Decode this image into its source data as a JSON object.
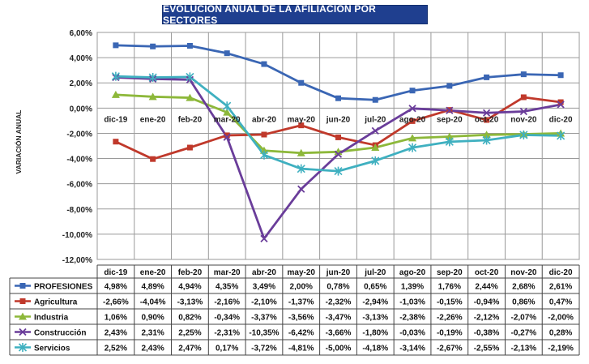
{
  "chart_data": {
    "type": "line",
    "title": "EVOLUCIÓN ANUAL DE LA AFILIACIÓN  POR SECTORES",
    "ylabel": "VARIACIÓN ANUAL",
    "xlabel": "",
    "ylim": [
      -12,
      6
    ],
    "yticks": [
      "6,00%",
      "4,00%",
      "2,00%",
      "0,00%",
      "-2,00%",
      "-4,00%",
      "-6,00%",
      "-8,00%",
      "-10,00%",
      "-12,00%"
    ],
    "grid": true,
    "legend": "data-table-below",
    "categories": [
      "dic-19",
      "ene-20",
      "feb-20",
      "mar-20",
      "abr-20",
      "may-20",
      "jun-20",
      "jul-20",
      "ago-20",
      "sep-20",
      "oct-20",
      "nov-20",
      "dic-20"
    ],
    "series": [
      {
        "name": "PROFESIONES",
        "color": "#3a66b4",
        "marker": "square",
        "values": [
          4.98,
          4.89,
          4.94,
          4.35,
          3.49,
          2.0,
          0.78,
          0.65,
          1.39,
          1.76,
          2.44,
          2.68,
          2.61
        ],
        "labels": [
          "4,98%",
          "4,89%",
          "4,94%",
          "4,35%",
          "3,49%",
          "2,00%",
          "0,78%",
          "0,65%",
          "1,39%",
          "1,76%",
          "2,44%",
          "2,68%",
          "2,61%"
        ]
      },
      {
        "name": "Agricultura",
        "color": "#c0392b",
        "marker": "square",
        "values": [
          -2.66,
          -4.04,
          -3.13,
          -2.16,
          -2.1,
          -1.37,
          -2.32,
          -2.94,
          -1.03,
          -0.15,
          -0.94,
          0.86,
          0.47
        ],
        "labels": [
          "-2,66%",
          "-4,04%",
          "-3,13%",
          "-2,16%",
          "-2,10%",
          "-1,37%",
          "-2,32%",
          "-2,94%",
          "-1,03%",
          "-0,15%",
          "-0,94%",
          "0,86%",
          "0,47%"
        ]
      },
      {
        "name": "Industria",
        "color": "#8db83a",
        "marker": "triangle",
        "values": [
          1.06,
          0.9,
          0.82,
          -0.34,
          -3.37,
          -3.56,
          -3.47,
          -3.13,
          -2.38,
          -2.26,
          -2.12,
          -2.07,
          -2.0
        ],
        "labels": [
          "1,06%",
          "0,90%",
          "0,82%",
          "-0,34%",
          "-3,37%",
          "-3,56%",
          "-3,47%",
          "-3,13%",
          "-2,38%",
          "-2,26%",
          "-2,12%",
          "-2,07%",
          "-2,00%"
        ]
      },
      {
        "name": "Construcción",
        "color": "#6a3d9a",
        "marker": "x",
        "values": [
          2.43,
          2.31,
          2.25,
          -2.31,
          -10.35,
          -6.42,
          -3.66,
          -1.8,
          -0.03,
          -0.19,
          -0.38,
          -0.27,
          0.28
        ],
        "labels": [
          "2,43%",
          "2,31%",
          "2,25%",
          "-2,31%",
          "-10,35%",
          "-6,42%",
          "-3,66%",
          "-1,80%",
          "-0,03%",
          "-0,19%",
          "-0,38%",
          "-0,27%",
          "0,28%"
        ]
      },
      {
        "name": "Servicios",
        "color": "#3fb0c0",
        "marker": "star",
        "values": [
          2.52,
          2.43,
          2.47,
          0.17,
          -3.72,
          -4.81,
          -5.0,
          -4.18,
          -3.14,
          -2.67,
          -2.55,
          -2.13,
          -2.19
        ],
        "labels": [
          "2,52%",
          "2,43%",
          "2,47%",
          "0,17%",
          "-3,72%",
          "-4,81%",
          "-5,00%",
          "-4,18%",
          "-3,14%",
          "-2,67%",
          "-2,55%",
          "-2,13%",
          "-2,19%"
        ]
      }
    ]
  }
}
